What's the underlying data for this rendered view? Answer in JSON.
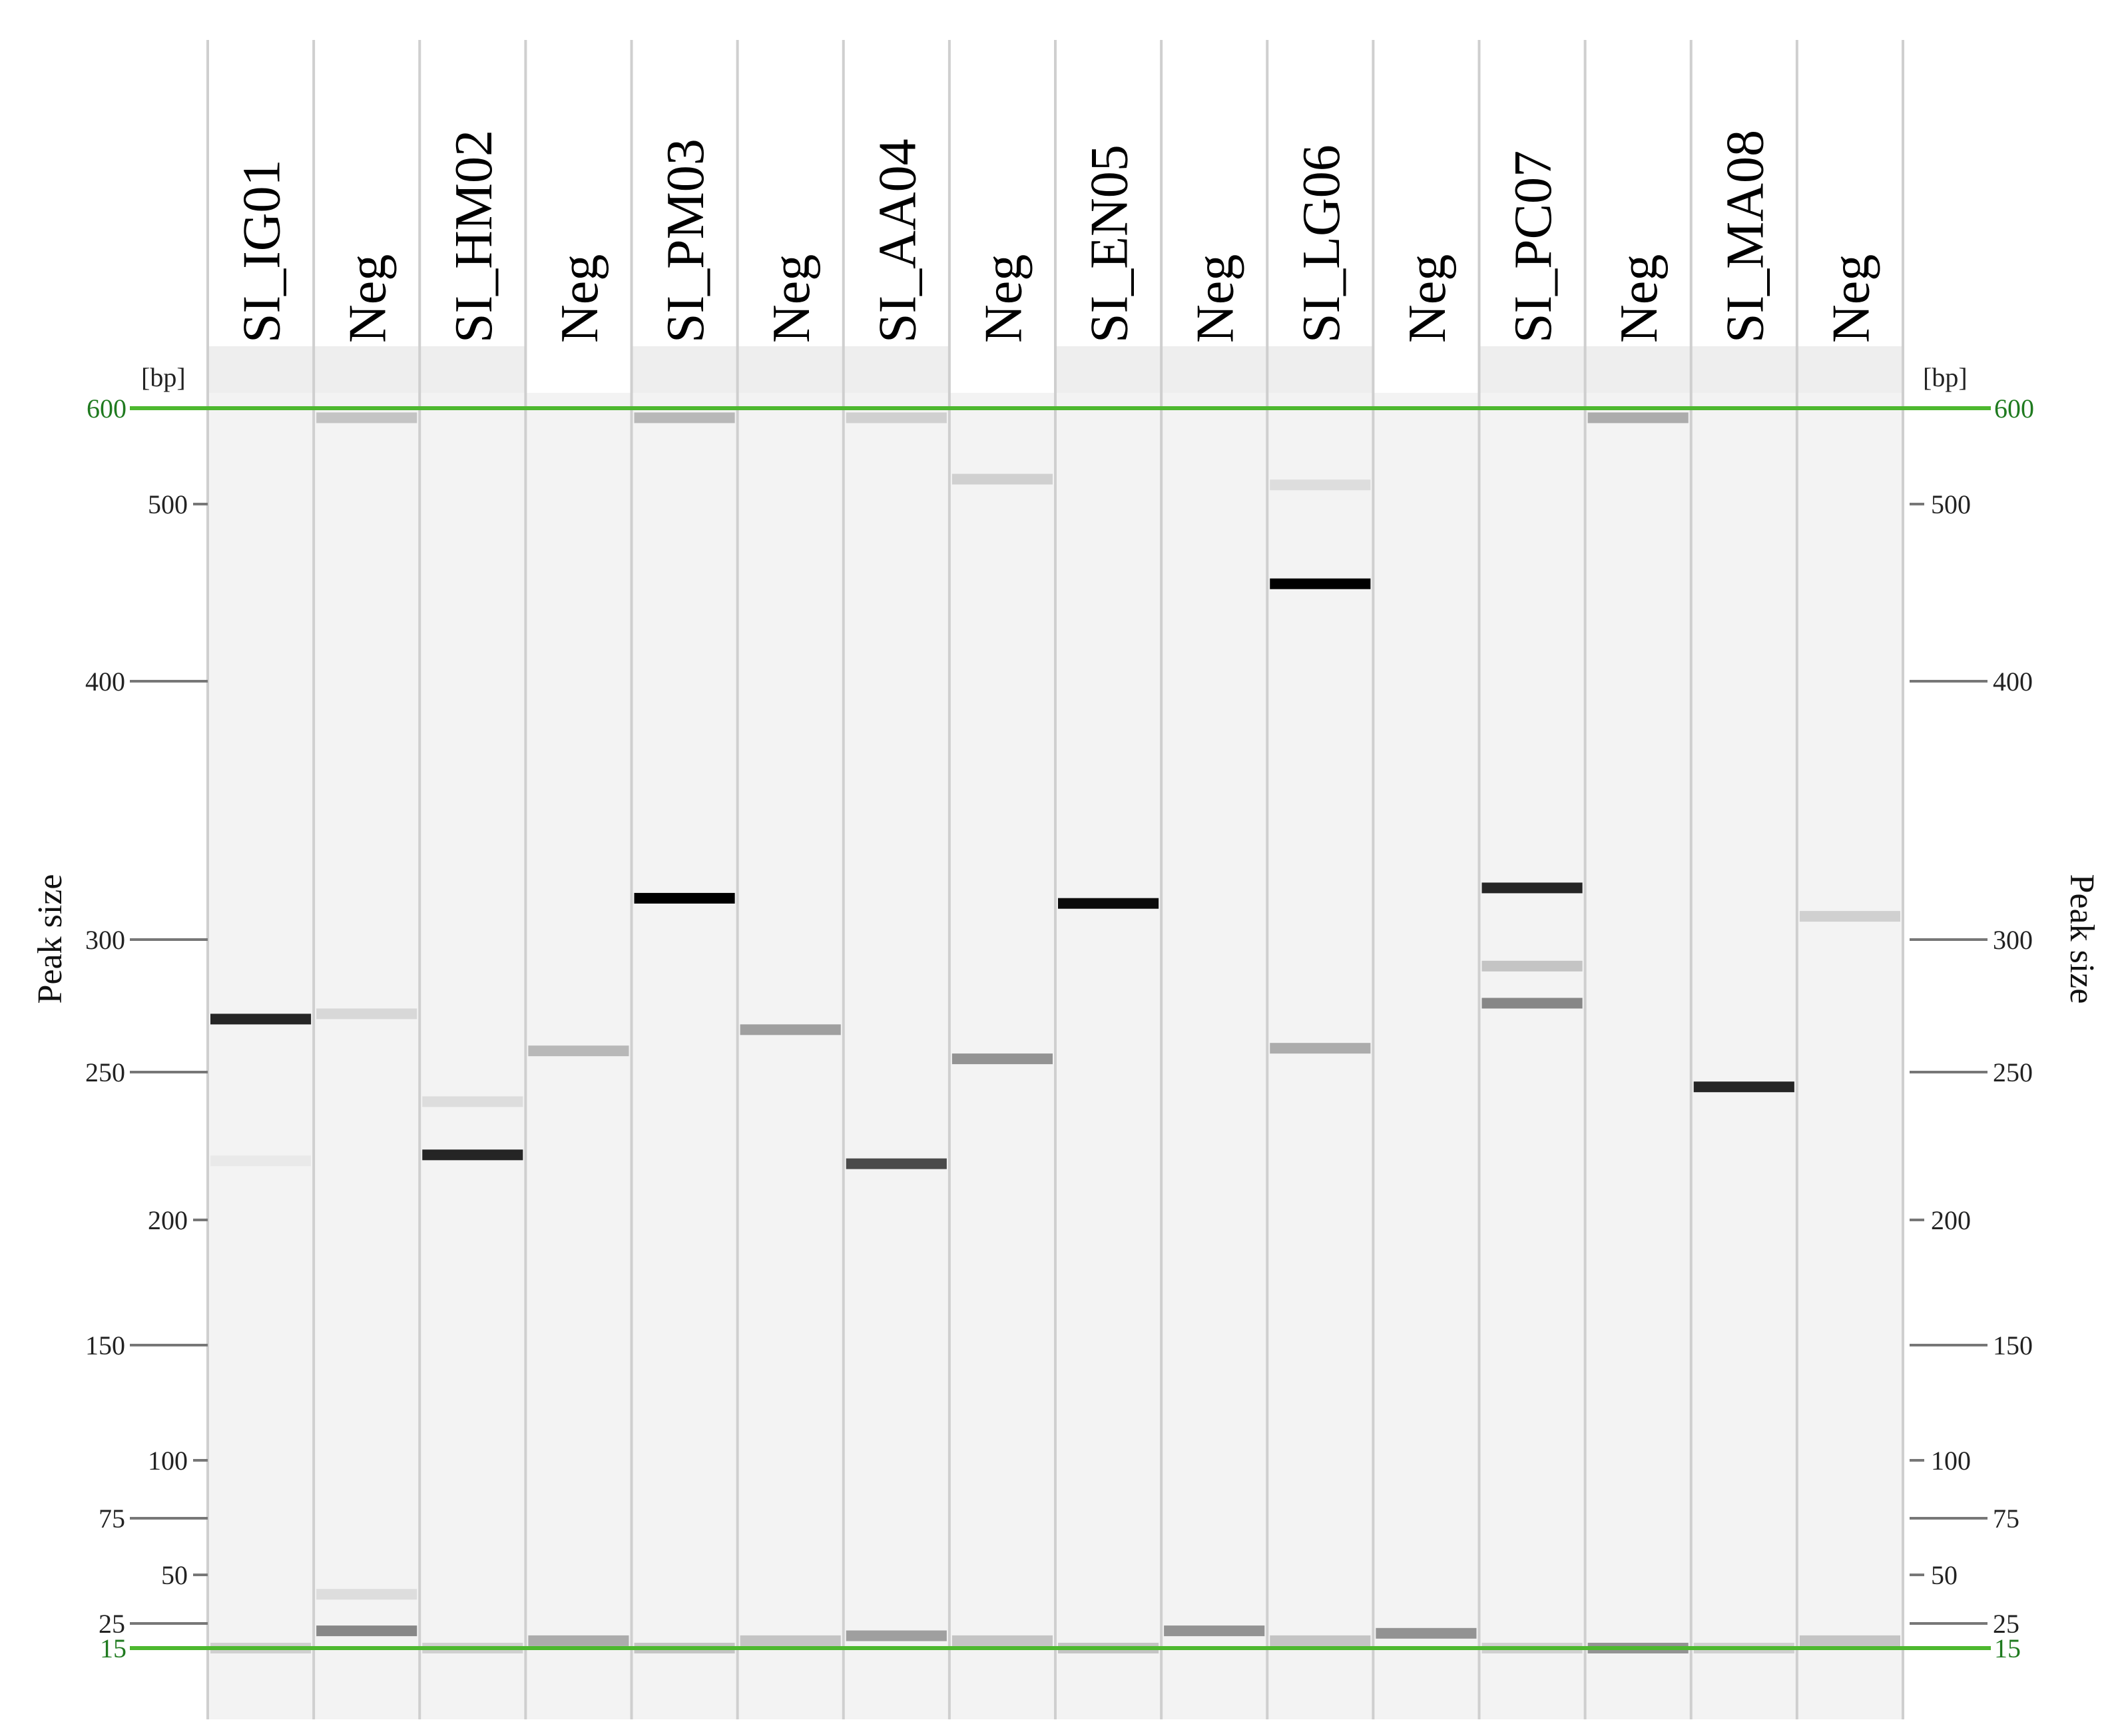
{
  "figure": {
    "unit": "[bp]",
    "axis_title_left": "Peak size",
    "axis_title_right": "Peak size"
  },
  "axis": {
    "ticks": [
      500,
      400,
      300,
      250,
      200,
      150,
      100,
      75,
      50,
      25
    ],
    "markers": [
      600,
      15
    ]
  },
  "lanes": [
    {
      "label": "SI_IG01",
      "bands": [
        {
          "bp": 270,
          "intensity": 0.85
        },
        {
          "bp": 220,
          "intensity": 0.05
        },
        {
          "bp": 15,
          "intensity": 0.15
        }
      ]
    },
    {
      "label": "Neg",
      "bands": [
        {
          "bp": 590,
          "intensity": 0.2
        },
        {
          "bp": 272,
          "intensity": 0.12
        },
        {
          "bp": 22,
          "intensity": 0.45
        },
        {
          "bp": 40,
          "intensity": 0.1
        }
      ]
    },
    {
      "label": "SI_HM02",
      "bands": [
        {
          "bp": 222,
          "intensity": 0.85
        },
        {
          "bp": 240,
          "intensity": 0.1
        },
        {
          "bp": 15,
          "intensity": 0.15
        }
      ]
    },
    {
      "label": "Neg",
      "bands": [
        {
          "bp": 258,
          "intensity": 0.25
        },
        {
          "bp": 18,
          "intensity": 0.3
        }
      ]
    },
    {
      "label": "SI_PM03",
      "bands": [
        {
          "bp": 316,
          "intensity": 1.0
        },
        {
          "bp": 590,
          "intensity": 0.25
        },
        {
          "bp": 15,
          "intensity": 0.2
        }
      ]
    },
    {
      "label": "Neg",
      "bands": [
        {
          "bp": 266,
          "intensity": 0.35
        },
        {
          "bp": 18,
          "intensity": 0.2
        }
      ]
    },
    {
      "label": "SI_AA04",
      "bands": [
        {
          "bp": 219,
          "intensity": 0.7
        },
        {
          "bp": 590,
          "intensity": 0.15
        },
        {
          "bp": 20,
          "intensity": 0.35
        }
      ]
    },
    {
      "label": "Neg",
      "bands": [
        {
          "bp": 255,
          "intensity": 0.4
        },
        {
          "bp": 526,
          "intensity": 0.15
        },
        {
          "bp": 18,
          "intensity": 0.2
        }
      ]
    },
    {
      "label": "SI_EN05",
      "bands": [
        {
          "bp": 314,
          "intensity": 0.95
        },
        {
          "bp": 15,
          "intensity": 0.2
        }
      ]
    },
    {
      "label": "Neg",
      "bands": [
        {
          "bp": 22,
          "intensity": 0.4
        }
      ]
    },
    {
      "label": "SI_LG06",
      "bands": [
        {
          "bp": 455,
          "intensity": 1.0
        },
        {
          "bp": 259,
          "intensity": 0.3
        },
        {
          "bp": 520,
          "intensity": 0.1
        },
        {
          "bp": 18,
          "intensity": 0.2
        }
      ]
    },
    {
      "label": "Neg",
      "bands": [
        {
          "bp": 21,
          "intensity": 0.4
        }
      ]
    },
    {
      "label": "SI_PC07",
      "bands": [
        {
          "bp": 320,
          "intensity": 0.85
        },
        {
          "bp": 290,
          "intensity": 0.2
        },
        {
          "bp": 276,
          "intensity": 0.45
        },
        {
          "bp": 15,
          "intensity": 0.15
        }
      ]
    },
    {
      "label": "Neg",
      "bands": [
        {
          "bp": 590,
          "intensity": 0.3
        },
        {
          "bp": 15,
          "intensity": 0.4
        }
      ]
    },
    {
      "label": "SI_MA08",
      "bands": [
        {
          "bp": 245,
          "intensity": 0.85
        },
        {
          "bp": 15,
          "intensity": 0.15
        }
      ]
    },
    {
      "label": "Neg",
      "bands": [
        {
          "bp": 309,
          "intensity": 0.15
        },
        {
          "bp": 18,
          "intensity": 0.2
        }
      ]
    }
  ],
  "colors": {
    "marker": "#4db82f",
    "marker_text": "#1f7a1f",
    "lane_bg": "#f3f3f3",
    "lane_sep": "#cfcfcf",
    "band": "#000000"
  }
}
